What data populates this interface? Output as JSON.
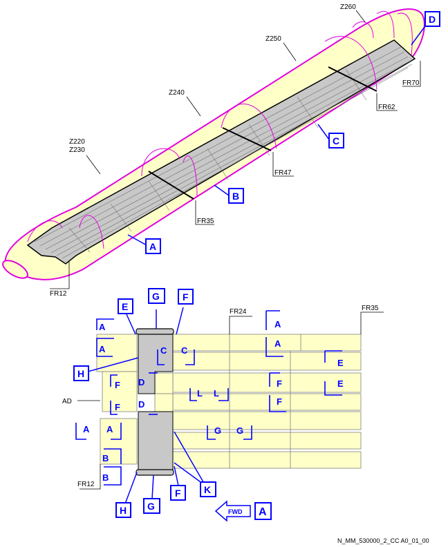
{
  "doc_ref": "N_MM_530000_2_CC A0_01_00",
  "zones": {
    "z220": "Z220",
    "z230": "Z230",
    "z240": "Z240",
    "z250": "Z250",
    "z260": "Z260"
  },
  "frames_top": {
    "fr12": "FR12",
    "fr35": "FR35",
    "fr47": "FR47",
    "fr62": "FR62",
    "fr70": "FR70"
  },
  "callouts_top": {
    "a": "A",
    "b": "B",
    "c": "C",
    "d": "D"
  },
  "detail": {
    "fr24": "FR24",
    "fr35": "FR35",
    "fr12": "FR12",
    "ad": "AD",
    "callouts": {
      "e": "E",
      "g_top": "G",
      "f_top": "F",
      "h_top": "H",
      "h_bottom": "H",
      "g_bottom": "G",
      "f_bottom": "F",
      "k": "K"
    },
    "section_marks": {
      "a": "A",
      "b": "B",
      "c": "C",
      "d": "D",
      "e": "E",
      "f": "F",
      "g": "G",
      "l": "L"
    },
    "fwd_label": "FWD",
    "view_label": "A"
  }
}
